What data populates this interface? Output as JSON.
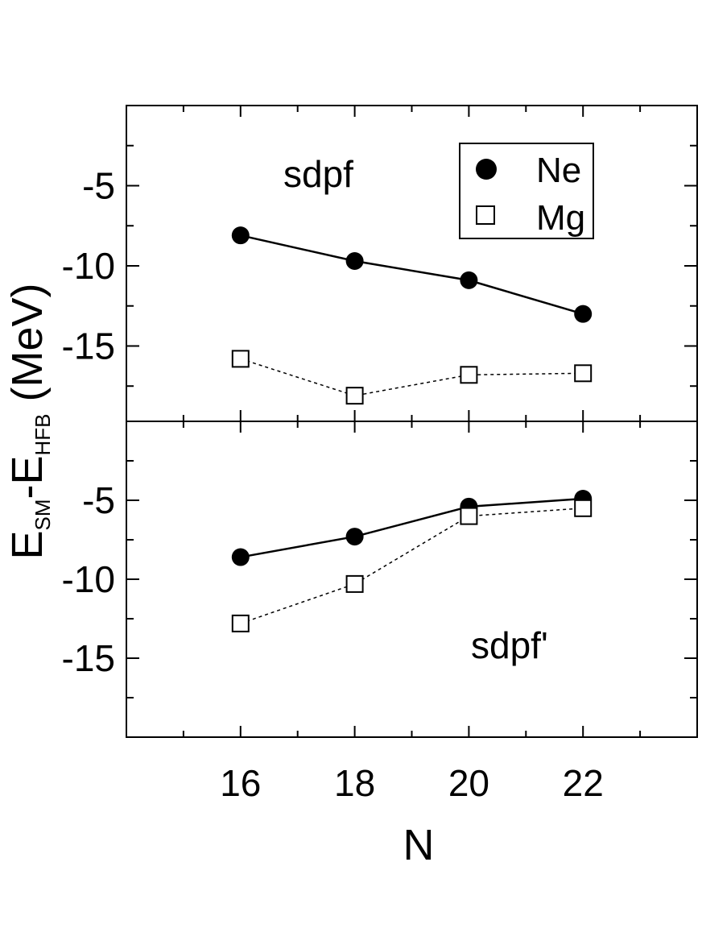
{
  "chart_data": {
    "type": "line",
    "ylabel": {
      "main1": "E",
      "sub1": "SM",
      "dash": "-E",
      "sub2": "HFB",
      "unit": " (MeV)"
    },
    "xlabel": "N",
    "xlim": [
      14,
      24
    ],
    "x_ticks": [
      16,
      18,
      20,
      22
    ],
    "x_tick_labels": [
      "16",
      "18",
      "20",
      "22"
    ],
    "legend": [
      {
        "label": "Ne",
        "marker": "filled-circle"
      },
      {
        "label": "Mg",
        "marker": "open-square"
      }
    ],
    "panels": [
      {
        "label": "sdpf",
        "ylim": [
          -19.7,
          0
        ],
        "y_ticks": [
          -5,
          -10,
          -15
        ],
        "y_tick_labels": [
          "-5",
          "-10",
          "-15"
        ],
        "series": [
          {
            "name": "Ne",
            "x": [
              16,
              18,
              20,
              22
            ],
            "y": [
              -8.1,
              -9.7,
              -10.9,
              -13.0
            ]
          },
          {
            "name": "Mg",
            "x": [
              16,
              18,
              20,
              22
            ],
            "y": [
              -15.8,
              -18.1,
              -16.8,
              -16.7
            ]
          }
        ]
      },
      {
        "label": "sdpf'",
        "ylim": [
          -20,
          0
        ],
        "y_ticks": [
          -5,
          -10,
          -15
        ],
        "y_tick_labels": [
          "-5",
          "-10",
          "-15"
        ],
        "series": [
          {
            "name": "Ne",
            "x": [
              16,
              18,
              20,
              22
            ],
            "y": [
              -8.6,
              -7.3,
              -5.4,
              -4.9
            ]
          },
          {
            "name": "Mg",
            "x": [
              16,
              18,
              20,
              22
            ],
            "y": [
              -12.8,
              -10.3,
              -6.0,
              -5.5
            ]
          }
        ]
      }
    ],
    "colors": {
      "line": "#000000",
      "background": "#ffffff"
    }
  }
}
